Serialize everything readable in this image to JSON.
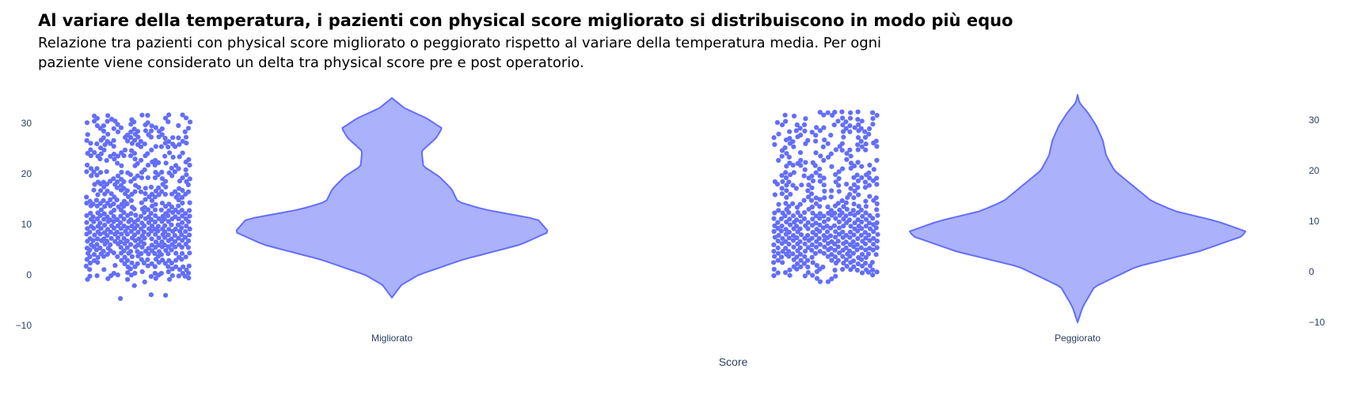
{
  "title": "Al variare della temperatura, i pazienti con physical score migliorato si distribuiscono in modo più equo",
  "subtitle": "Relazione tra pazienti con physical score migliorato o peggiorato rispetto al variare della temperatura media. Per ogni paziente viene considerato un delta tra physical score pre e post operatorio.",
  "colors": {
    "marker": "#636efa",
    "violin_fill": "#abb1fa",
    "violin_line": "#636efa",
    "axis_text": "#2a3f5f"
  },
  "chart_data": [
    {
      "type": "violin",
      "category": "Migliorato",
      "points": "all",
      "point_count_estimate": 1200,
      "y_min": -4.5,
      "y_max": 31.5,
      "y_ticks": [
        30,
        20,
        10,
        0,
        -10
      ],
      "ylim": [
        -11,
        37
      ],
      "density_profile": [
        {
          "y": -4.5,
          "w": 0.0
        },
        {
          "y": -2,
          "w": 0.06
        },
        {
          "y": 0,
          "w": 0.17
        },
        {
          "y": 3,
          "w": 0.45
        },
        {
          "y": 6,
          "w": 0.82
        },
        {
          "y": 8.5,
          "w": 1.0
        },
        {
          "y": 11,
          "w": 0.93
        },
        {
          "y": 13,
          "w": 0.58
        },
        {
          "y": 14.5,
          "w": 0.42
        },
        {
          "y": 17,
          "w": 0.38
        },
        {
          "y": 19.5,
          "w": 0.3
        },
        {
          "y": 21.5,
          "w": 0.2
        },
        {
          "y": 24.5,
          "w": 0.19
        },
        {
          "y": 27,
          "w": 0.28
        },
        {
          "y": 29,
          "w": 0.32
        },
        {
          "y": 31,
          "w": 0.22
        },
        {
          "y": 33,
          "w": 0.08
        },
        {
          "y": 35,
          "w": 0.0
        }
      ]
    },
    {
      "type": "violin",
      "category": "Peggiorato",
      "points": "all",
      "point_count_estimate": 600,
      "y_min": -4.5,
      "y_max": 31.5,
      "y_ticks": [
        30,
        20,
        10,
        0,
        -10
      ],
      "ylim": [
        -11,
        37
      ],
      "density_profile": [
        {
          "y": -10,
          "w": 0.0
        },
        {
          "y": -7,
          "w": 0.03
        },
        {
          "y": -3,
          "w": 0.1
        },
        {
          "y": 1,
          "w": 0.35
        },
        {
          "y": 4,
          "w": 0.72
        },
        {
          "y": 7,
          "w": 0.98
        },
        {
          "y": 8,
          "w": 1.0
        },
        {
          "y": 10,
          "w": 0.83
        },
        {
          "y": 12,
          "w": 0.58
        },
        {
          "y": 14,
          "w": 0.44
        },
        {
          "y": 17,
          "w": 0.33
        },
        {
          "y": 20,
          "w": 0.22
        },
        {
          "y": 23,
          "w": 0.17
        },
        {
          "y": 26,
          "w": 0.15
        },
        {
          "y": 29,
          "w": 0.11
        },
        {
          "y": 31.5,
          "w": 0.06
        },
        {
          "y": 33.5,
          "w": 0.01
        },
        {
          "y": 35,
          "w": 0.0
        }
      ]
    }
  ],
  "xlabel": "Score",
  "ylabel": ""
}
